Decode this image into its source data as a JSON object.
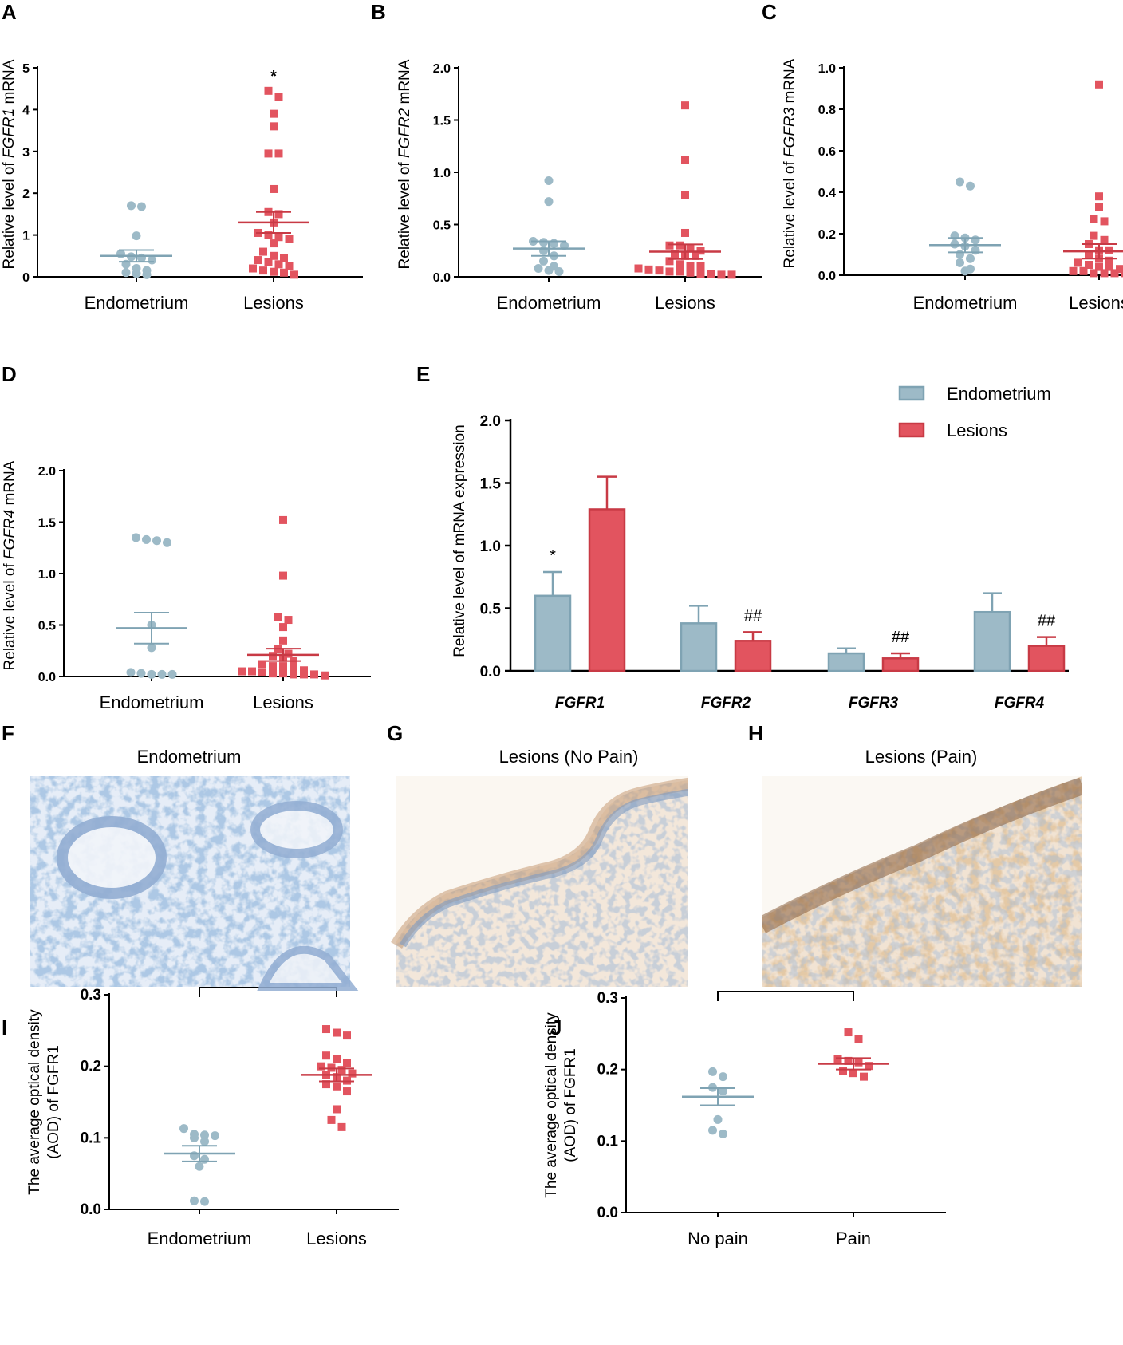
{
  "colors": {
    "endometrium": "#9dbac7",
    "endometrium_dark": "#7fa3b3",
    "lesions": "#e2545f",
    "lesions_dark": "#c83a45",
    "axis": "#000000"
  },
  "categories_two": [
    "Endometrium",
    "Lesions"
  ],
  "chart_data": [
    {
      "panel": "A",
      "type": "scatter",
      "ylabel_prefix": "Relative level of ",
      "ylabel_gene": "FGFR1",
      "ylabel_suffix": " mRNA",
      "categories": [
        "Endometrium",
        "Lesions"
      ],
      "ylim": [
        0,
        5
      ],
      "yticks": [
        "0",
        "1",
        "2",
        "3",
        "4",
        "5"
      ],
      "ytick_values": [
        0,
        1,
        2,
        3,
        4,
        5
      ],
      "series": [
        {
          "name": "Endometrium",
          "mean": 0.5,
          "sem": 0.14,
          "values": [
            1.7,
            1.68,
            0.98,
            0.55,
            0.48,
            0.45,
            0.4,
            0.3,
            0.2,
            0.15,
            0.1,
            0.08,
            0.05
          ]
        },
        {
          "name": "Lesions",
          "mean": 1.3,
          "sem": 0.25,
          "values": [
            4.45,
            4.3,
            3.9,
            3.6,
            2.95,
            2.95,
            2.1,
            1.55,
            1.5,
            1.3,
            1.05,
            1.0,
            0.95,
            0.9,
            0.8,
            0.6,
            0.5,
            0.45,
            0.4,
            0.35,
            0.3,
            0.25,
            0.2,
            0.15,
            0.12,
            0.1,
            0.05
          ]
        }
      ],
      "annotation": "*"
    },
    {
      "panel": "B",
      "type": "scatter",
      "ylabel_prefix": "Relative level of ",
      "ylabel_gene": "FGFR2",
      "ylabel_suffix": " mRNA",
      "categories": [
        "Endometrium",
        "Lesions"
      ],
      "ylim": [
        0,
        2
      ],
      "yticks": [
        "0.0",
        "0.5",
        "1.0",
        "1.5",
        "2.0"
      ],
      "ytick_values": [
        0,
        0.5,
        1.0,
        1.5,
        2.0
      ],
      "series": [
        {
          "name": "Endometrium",
          "mean": 0.27,
          "sem": 0.07,
          "values": [
            0.92,
            0.72,
            0.34,
            0.33,
            0.32,
            0.3,
            0.25,
            0.2,
            0.15,
            0.1,
            0.08,
            0.06,
            0.05
          ]
        },
        {
          "name": "Lesions",
          "mean": 0.24,
          "sem": 0.07,
          "values": [
            1.64,
            1.12,
            0.78,
            0.42,
            0.3,
            0.3,
            0.27,
            0.25,
            0.22,
            0.2,
            0.2,
            0.15,
            0.12,
            0.1,
            0.1,
            0.08,
            0.07,
            0.06,
            0.05,
            0.05,
            0.04,
            0.03,
            0.03,
            0.02,
            0.02
          ]
        }
      ]
    },
    {
      "panel": "C",
      "type": "scatter",
      "ylabel_prefix": "Relative level of ",
      "ylabel_gene": "FGFR3",
      "ylabel_suffix": " mRNA",
      "categories": [
        "Endometrium",
        "Lesions"
      ],
      "ylim": [
        0,
        1
      ],
      "yticks": [
        "0.0",
        "0.2",
        "0.4",
        "0.6",
        "0.8",
        "1.0"
      ],
      "ytick_values": [
        0,
        0.2,
        0.4,
        0.6,
        0.8,
        1.0
      ],
      "series": [
        {
          "name": "Endometrium",
          "mean": 0.145,
          "sem": 0.035,
          "values": [
            0.45,
            0.43,
            0.19,
            0.18,
            0.17,
            0.15,
            0.14,
            0.12,
            0.1,
            0.08,
            0.06,
            0.03,
            0.02
          ]
        },
        {
          "name": "Lesions",
          "mean": 0.115,
          "sem": 0.035,
          "values": [
            0.92,
            0.38,
            0.33,
            0.27,
            0.26,
            0.19,
            0.17,
            0.15,
            0.12,
            0.12,
            0.1,
            0.08,
            0.07,
            0.06,
            0.05,
            0.04,
            0.04,
            0.03,
            0.02,
            0.02,
            0.01,
            0.01,
            0.01,
            0.01
          ]
        }
      ]
    },
    {
      "panel": "D",
      "type": "scatter",
      "ylabel_prefix": "Relative level of ",
      "ylabel_gene": "FGFR4",
      "ylabel_suffix": " mRNA",
      "categories": [
        "Endometrium",
        "Lesions"
      ],
      "ylim": [
        0,
        2
      ],
      "yticks": [
        "0.0",
        "0.5",
        "1.0",
        "1.5",
        "2.0"
      ],
      "ytick_values": [
        0,
        0.5,
        1.0,
        1.5,
        2.0
      ],
      "series": [
        {
          "name": "Endometrium",
          "mean": 0.47,
          "sem": 0.15,
          "values": [
            1.35,
            1.33,
            1.32,
            1.3,
            0.5,
            0.28,
            0.04,
            0.03,
            0.02,
            0.02,
            0.02
          ]
        },
        {
          "name": "Lesions",
          "mean": 0.21,
          "sem": 0.06,
          "values": [
            1.52,
            0.98,
            0.58,
            0.55,
            0.48,
            0.35,
            0.27,
            0.22,
            0.2,
            0.18,
            0.15,
            0.12,
            0.1,
            0.1,
            0.08,
            0.06,
            0.05,
            0.05,
            0.04,
            0.03,
            0.03,
            0.02,
            0.02,
            0.02,
            0.01
          ]
        }
      ]
    },
    {
      "panel": "E",
      "type": "bar",
      "ylabel": "Relative level of mRNA expression",
      "categories": [
        "FGFR1",
        "FGFR2",
        "FGFR3",
        "FGFR4"
      ],
      "ylim": [
        0,
        2
      ],
      "yticks": [
        "0.0",
        "0.5",
        "1.0",
        "1.5",
        "2.0"
      ],
      "ytick_values": [
        0,
        0.5,
        1.0,
        1.5,
        2.0
      ],
      "legend": [
        "Endometrium",
        "Lesions"
      ],
      "series": [
        {
          "name": "Endometrium",
          "values": [
            0.6,
            0.38,
            0.14,
            0.47
          ],
          "errors": [
            0.19,
            0.14,
            0.04,
            0.15
          ],
          "labels": [
            "*",
            "",
            "",
            ""
          ]
        },
        {
          "name": "Lesions",
          "values": [
            1.29,
            0.24,
            0.1,
            0.2
          ],
          "errors": [
            0.26,
            0.07,
            0.04,
            0.07
          ],
          "labels": [
            "",
            "##",
            "##",
            "##"
          ]
        }
      ]
    },
    {
      "panel": "I",
      "type": "scatter",
      "ylabel_line1": "The average optical density",
      "ylabel_line2": "(AOD) of FGFR1",
      "categories": [
        "Endometrium",
        "Lesions"
      ],
      "ylim": [
        0,
        0.3
      ],
      "yticks": [
        "0.0",
        "0.1",
        "0.2",
        "0.3"
      ],
      "ytick_values": [
        0,
        0.1,
        0.2,
        0.3
      ],
      "series": [
        {
          "name": "Endometrium",
          "mean": 0.078,
          "sem": 0.011,
          "values": [
            0.113,
            0.105,
            0.104,
            0.103,
            0.1,
            0.095,
            0.075,
            0.07,
            0.06,
            0.012,
            0.011
          ]
        },
        {
          "name": "Lesions",
          "mean": 0.188,
          "sem": 0.009,
          "values": [
            0.252,
            0.247,
            0.243,
            0.215,
            0.21,
            0.205,
            0.2,
            0.198,
            0.195,
            0.19,
            0.188,
            0.185,
            0.18,
            0.175,
            0.172,
            0.165,
            0.14,
            0.125,
            0.115
          ]
        }
      ],
      "annotation": "**"
    },
    {
      "panel": "J",
      "type": "scatter",
      "ylabel_line1": "The average optical density",
      "ylabel_line2": "(AOD) of FGFR1",
      "categories": [
        "No pain",
        "Pain"
      ],
      "ylim": [
        0,
        0.3
      ],
      "yticks": [
        "0.0",
        "0.1",
        "0.2",
        "0.3"
      ],
      "ytick_values": [
        0,
        0.1,
        0.2,
        0.3
      ],
      "series": [
        {
          "name": "No pain",
          "mean": 0.162,
          "sem": 0.012,
          "values": [
            0.197,
            0.19,
            0.175,
            0.17,
            0.13,
            0.115,
            0.11
          ]
        },
        {
          "name": "Pain",
          "mean": 0.208,
          "sem": 0.008,
          "values": [
            0.252,
            0.242,
            0.215,
            0.212,
            0.21,
            0.205,
            0.198,
            0.195,
            0.19
          ]
        }
      ],
      "annotation": "**"
    }
  ],
  "histology": [
    {
      "panel": "F",
      "title": "Endometrium"
    },
    {
      "panel": "G",
      "title": "Lesions (No Pain)"
    },
    {
      "panel": "H",
      "title": "Lesions (Pain)"
    }
  ]
}
